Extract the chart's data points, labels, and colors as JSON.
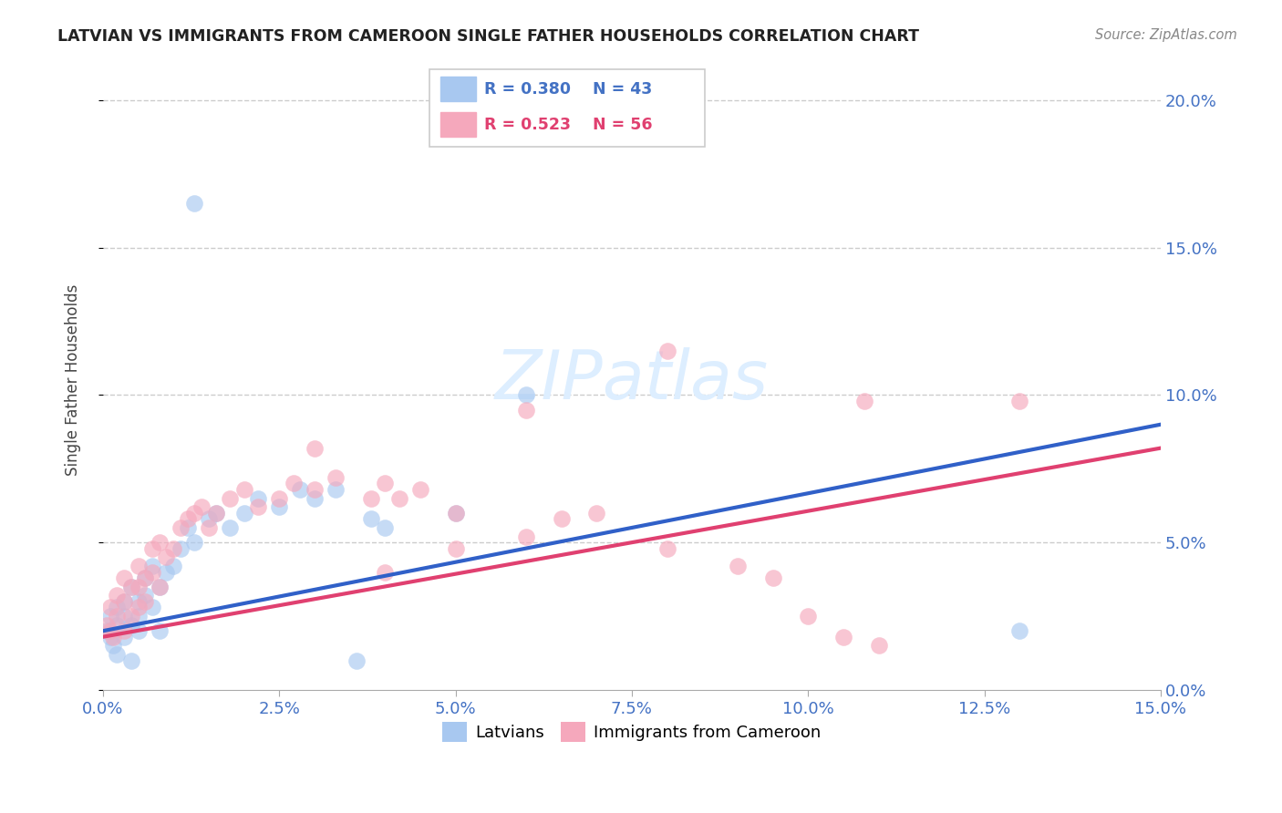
{
  "title": "LATVIAN VS IMMIGRANTS FROM CAMEROON SINGLE FATHER HOUSEHOLDS CORRELATION CHART",
  "source": "Source: ZipAtlas.com",
  "ylabel": "Single Father Households",
  "xlim": [
    0.0,
    0.15
  ],
  "ylim": [
    0.0,
    0.21
  ],
  "xticks": [
    0.0,
    0.025,
    0.05,
    0.075,
    0.1,
    0.125,
    0.15
  ],
  "yticks": [
    0.0,
    0.05,
    0.1,
    0.15,
    0.2
  ],
  "latvian_R": 0.38,
  "latvian_N": 43,
  "cameroon_R": 0.523,
  "cameroon_N": 56,
  "latvian_color": "#a8c8f0",
  "cameroon_color": "#f5a8bc",
  "latvian_line_color": "#3060c8",
  "cameroon_line_color": "#e04070",
  "watermark": "ZIPatlas",
  "latvians_x": [
    0.0005,
    0.001,
    0.001,
    0.0015,
    0.002,
    0.002,
    0.002,
    0.003,
    0.003,
    0.003,
    0.004,
    0.004,
    0.004,
    0.005,
    0.005,
    0.005,
    0.006,
    0.006,
    0.007,
    0.007,
    0.008,
    0.008,
    0.009,
    0.01,
    0.011,
    0.012,
    0.013,
    0.015,
    0.016,
    0.018,
    0.02,
    0.022,
    0.025,
    0.028,
    0.03,
    0.033,
    0.038,
    0.04,
    0.05,
    0.06,
    0.013,
    0.13,
    0.036
  ],
  "latvians_y": [
    0.02,
    0.018,
    0.025,
    0.015,
    0.022,
    0.028,
    0.012,
    0.025,
    0.018,
    0.03,
    0.022,
    0.035,
    0.01,
    0.025,
    0.03,
    0.02,
    0.032,
    0.038,
    0.028,
    0.042,
    0.035,
    0.02,
    0.04,
    0.042,
    0.048,
    0.055,
    0.05,
    0.058,
    0.06,
    0.055,
    0.06,
    0.065,
    0.062,
    0.068,
    0.065,
    0.068,
    0.058,
    0.055,
    0.06,
    0.1,
    0.165,
    0.02,
    0.01
  ],
  "cameroon_x": [
    0.0005,
    0.001,
    0.001,
    0.0015,
    0.002,
    0.002,
    0.003,
    0.003,
    0.003,
    0.004,
    0.004,
    0.005,
    0.005,
    0.005,
    0.006,
    0.006,
    0.007,
    0.007,
    0.008,
    0.008,
    0.009,
    0.01,
    0.011,
    0.012,
    0.013,
    0.014,
    0.015,
    0.016,
    0.018,
    0.02,
    0.022,
    0.025,
    0.027,
    0.03,
    0.033,
    0.038,
    0.04,
    0.042,
    0.045,
    0.05,
    0.05,
    0.06,
    0.065,
    0.07,
    0.08,
    0.09,
    0.095,
    0.1,
    0.105,
    0.11,
    0.03,
    0.04,
    0.06,
    0.08,
    0.108,
    0.13
  ],
  "cameroon_y": [
    0.022,
    0.02,
    0.028,
    0.018,
    0.025,
    0.032,
    0.02,
    0.03,
    0.038,
    0.025,
    0.035,
    0.028,
    0.035,
    0.042,
    0.03,
    0.038,
    0.04,
    0.048,
    0.035,
    0.05,
    0.045,
    0.048,
    0.055,
    0.058,
    0.06,
    0.062,
    0.055,
    0.06,
    0.065,
    0.068,
    0.062,
    0.065,
    0.07,
    0.068,
    0.072,
    0.065,
    0.07,
    0.065,
    0.068,
    0.06,
    0.048,
    0.052,
    0.058,
    0.06,
    0.048,
    0.042,
    0.038,
    0.025,
    0.018,
    0.015,
    0.082,
    0.04,
    0.095,
    0.115,
    0.098,
    0.098
  ],
  "trend_lat_x0": 0.0,
  "trend_lat_y0": 0.02,
  "trend_lat_x1": 0.15,
  "trend_lat_y1": 0.09,
  "trend_cam_x0": 0.0,
  "trend_cam_y0": 0.018,
  "trend_cam_x1": 0.15,
  "trend_cam_y1": 0.082
}
